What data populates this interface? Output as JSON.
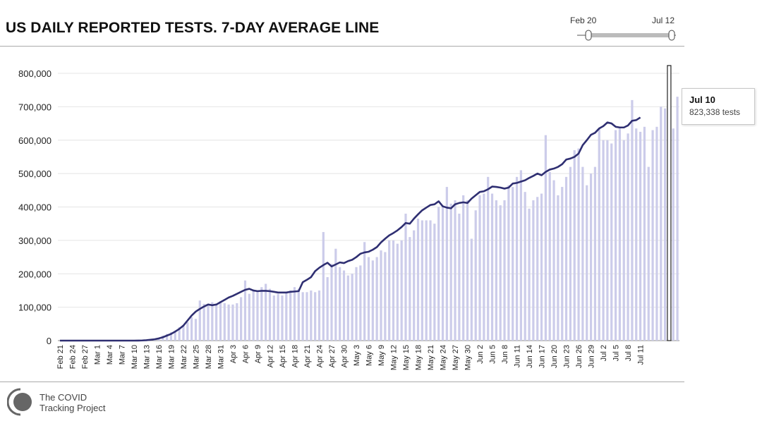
{
  "chart_data": {
    "type": "bar",
    "title": "US DAILY REPORTED TESTS. 7-DAY AVERAGE LINE",
    "xlabel": "",
    "ylabel": "",
    "ylim": [
      0,
      830000
    ],
    "y_ticks": [
      "0",
      "100,000",
      "200,000",
      "300,000",
      "400,000",
      "500,000",
      "600,000",
      "700,000",
      "800,000"
    ],
    "x_tick_labels": [
      "Feb 21",
      "Feb 24",
      "Feb 27",
      "Mar 1",
      "Mar 4",
      "Mar 7",
      "Mar 10",
      "Mar 13",
      "Mar 16",
      "Mar 19",
      "Mar 22",
      "Mar 25",
      "Mar 28",
      "Mar 31",
      "Apr 3",
      "Apr 6",
      "Apr 9",
      "Apr 12",
      "Apr 15",
      "Apr 18",
      "Apr 21",
      "Apr 24",
      "Apr 27",
      "Apr 30",
      "May 3",
      "May 6",
      "May 9",
      "May 12",
      "May 15",
      "May 18",
      "May 21",
      "May 24",
      "May 27",
      "May 30",
      "Jun 2",
      "Jun 5",
      "Jun 8",
      "Jun 11",
      "Jun 14",
      "Jun 17",
      "Jun 20",
      "Jun 23",
      "Jun 26",
      "Jun 29",
      "Jul 2",
      "Jul 5",
      "Jul 8",
      "Jul 11"
    ],
    "x_start": "Feb 20",
    "x_end": "Jul 12",
    "grid": true,
    "series": [
      {
        "kind": "bar",
        "values": [
          0,
          0,
          0,
          0,
          0,
          0,
          0,
          0,
          0,
          0,
          0,
          0,
          0,
          0,
          0,
          0,
          0,
          0,
          0,
          500,
          1000,
          2000,
          3000,
          5000,
          8000,
          15000,
          20000,
          25000,
          30000,
          40000,
          45000,
          55000,
          70000,
          65000,
          120000,
          110000,
          105000,
          115000,
          110000,
          118000,
          112000,
          108000,
          108000,
          112000,
          130000,
          180000,
          140000,
          150000,
          150000,
          160000,
          170000,
          155000,
          135000,
          140000,
          135000,
          145000,
          150000,
          160000,
          155000,
          145000,
          145000,
          150000,
          145000,
          150000,
          325000,
          190000,
          230000,
          275000,
          220000,
          210000,
          195000,
          200000,
          220000,
          225000,
          295000,
          250000,
          240000,
          250000,
          270000,
          265000,
          300000,
          300000,
          290000,
          300000,
          380000,
          310000,
          330000,
          365000,
          360000,
          360000,
          360000,
          350000,
          400000,
          405000,
          460000,
          410000,
          420000,
          380000,
          435000,
          420000,
          305000,
          390000,
          435000,
          440000,
          490000,
          440000,
          420000,
          405000,
          420000,
          465000,
          460000,
          490000,
          510000,
          445000,
          395000,
          420000,
          430000,
          440000,
          615000,
          505000,
          480000,
          435000,
          460000,
          490000,
          520000,
          570000,
          575000,
          520000,
          465000,
          500000,
          520000,
          635000,
          600000,
          600000,
          590000,
          630000,
          635000,
          600000,
          620000,
          720000,
          635000,
          625000,
          640000,
          520000,
          630000,
          640000,
          700000,
          695000,
          823338,
          635000,
          730000
        ]
      },
      {
        "kind": "line",
        "name": "7-day average",
        "values": [
          0,
          0,
          0,
          0,
          0,
          0,
          0,
          0,
          0,
          0,
          0,
          0,
          0,
          0,
          0,
          0,
          0,
          0,
          0,
          200,
          500,
          1200,
          2500,
          4000,
          6500,
          10000,
          15000,
          20000,
          27000,
          35000,
          45000,
          60000,
          75000,
          87000,
          95000,
          102000,
          108000,
          106000,
          108000,
          115000,
          122000,
          129000,
          134000,
          140000,
          146000,
          152000,
          155000,
          150000,
          148000,
          149000,
          149000,
          148000,
          146000,
          144000,
          144000,
          144000,
          146000,
          147000,
          148000,
          175000,
          182000,
          190000,
          208000,
          218000,
          226000,
          233000,
          222000,
          228000,
          234000,
          232000,
          238000,
          242000,
          250000,
          260000,
          264000,
          266000,
          272000,
          280000,
          294000,
          305000,
          315000,
          322000,
          330000,
          340000,
          352000,
          350000,
          365000,
          378000,
          390000,
          398000,
          406000,
          408000,
          417000,
          402000,
          398000,
          396000,
          408000,
          412000,
          414000,
          412000,
          425000,
          435000,
          445000,
          447000,
          453000,
          461000,
          460000,
          458000,
          455000,
          458000,
          470000,
          472000,
          476000,
          480000,
          487000,
          493000,
          500000,
          495000,
          505000,
          512000,
          515000,
          520000,
          528000,
          542000,
          545000,
          550000,
          560000,
          585000,
          600000,
          616000,
          622000,
          635000,
          642000,
          653000,
          650000,
          640000,
          638000,
          638000,
          644000,
          658000,
          660000,
          668000
        ]
      }
    ]
  },
  "range_slider": {
    "start_label": "Feb 20",
    "end_label": "Jul 12"
  },
  "tooltip": {
    "date": "Jul 10",
    "value_text": "823,338 tests"
  },
  "branding": {
    "line1": "The COVID",
    "line2": "Tracking Project"
  },
  "colors": {
    "bar": "#ccccea",
    "line": "#2f2f72",
    "grid": "#e4e4e4",
    "highlight_stroke": "#222222"
  }
}
